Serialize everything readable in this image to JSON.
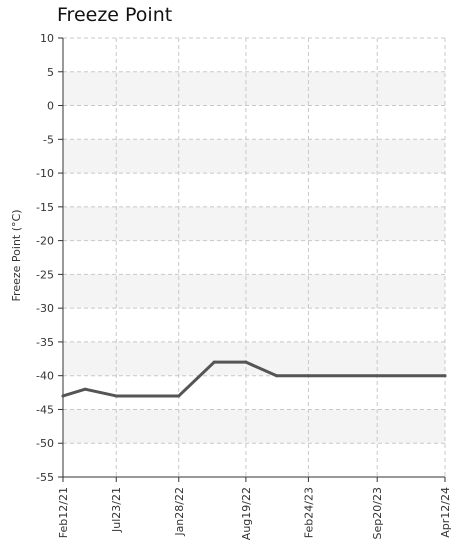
{
  "chart_data": {
    "type": "line",
    "title": "Freeze Point",
    "xlabel": "",
    "ylabel": "Freeze Point (°C)",
    "ylim": [
      -55,
      10
    ],
    "y_ticks": [
      10,
      5,
      0,
      -5,
      -10,
      -15,
      -20,
      -25,
      -30,
      -35,
      -40,
      -45,
      -50,
      -55
    ],
    "x_ticks": [
      "Feb12/21",
      "Jul23/21",
      "Jan28/22",
      "Aug19/22",
      "Feb24/23",
      "Sep20/23",
      "Apr12/24"
    ],
    "grid": true,
    "legend": "none",
    "series": [
      {
        "color": "#555555",
        "points": [
          {
            "x": "2021-02-12",
            "y": -43
          },
          {
            "x": "2021-04-20",
            "y": -42
          },
          {
            "x": "2021-07-23",
            "y": -43
          },
          {
            "x": "2022-01-28",
            "y": -43
          },
          {
            "x": "2022-05-15",
            "y": -38
          },
          {
            "x": "2022-08-19",
            "y": -38
          },
          {
            "x": "2022-11-20",
            "y": -40
          },
          {
            "x": "2023-02-24",
            "y": -40
          },
          {
            "x": "2023-09-20",
            "y": -40
          },
          {
            "x": "2024-04-12",
            "y": -40
          }
        ]
      }
    ]
  }
}
